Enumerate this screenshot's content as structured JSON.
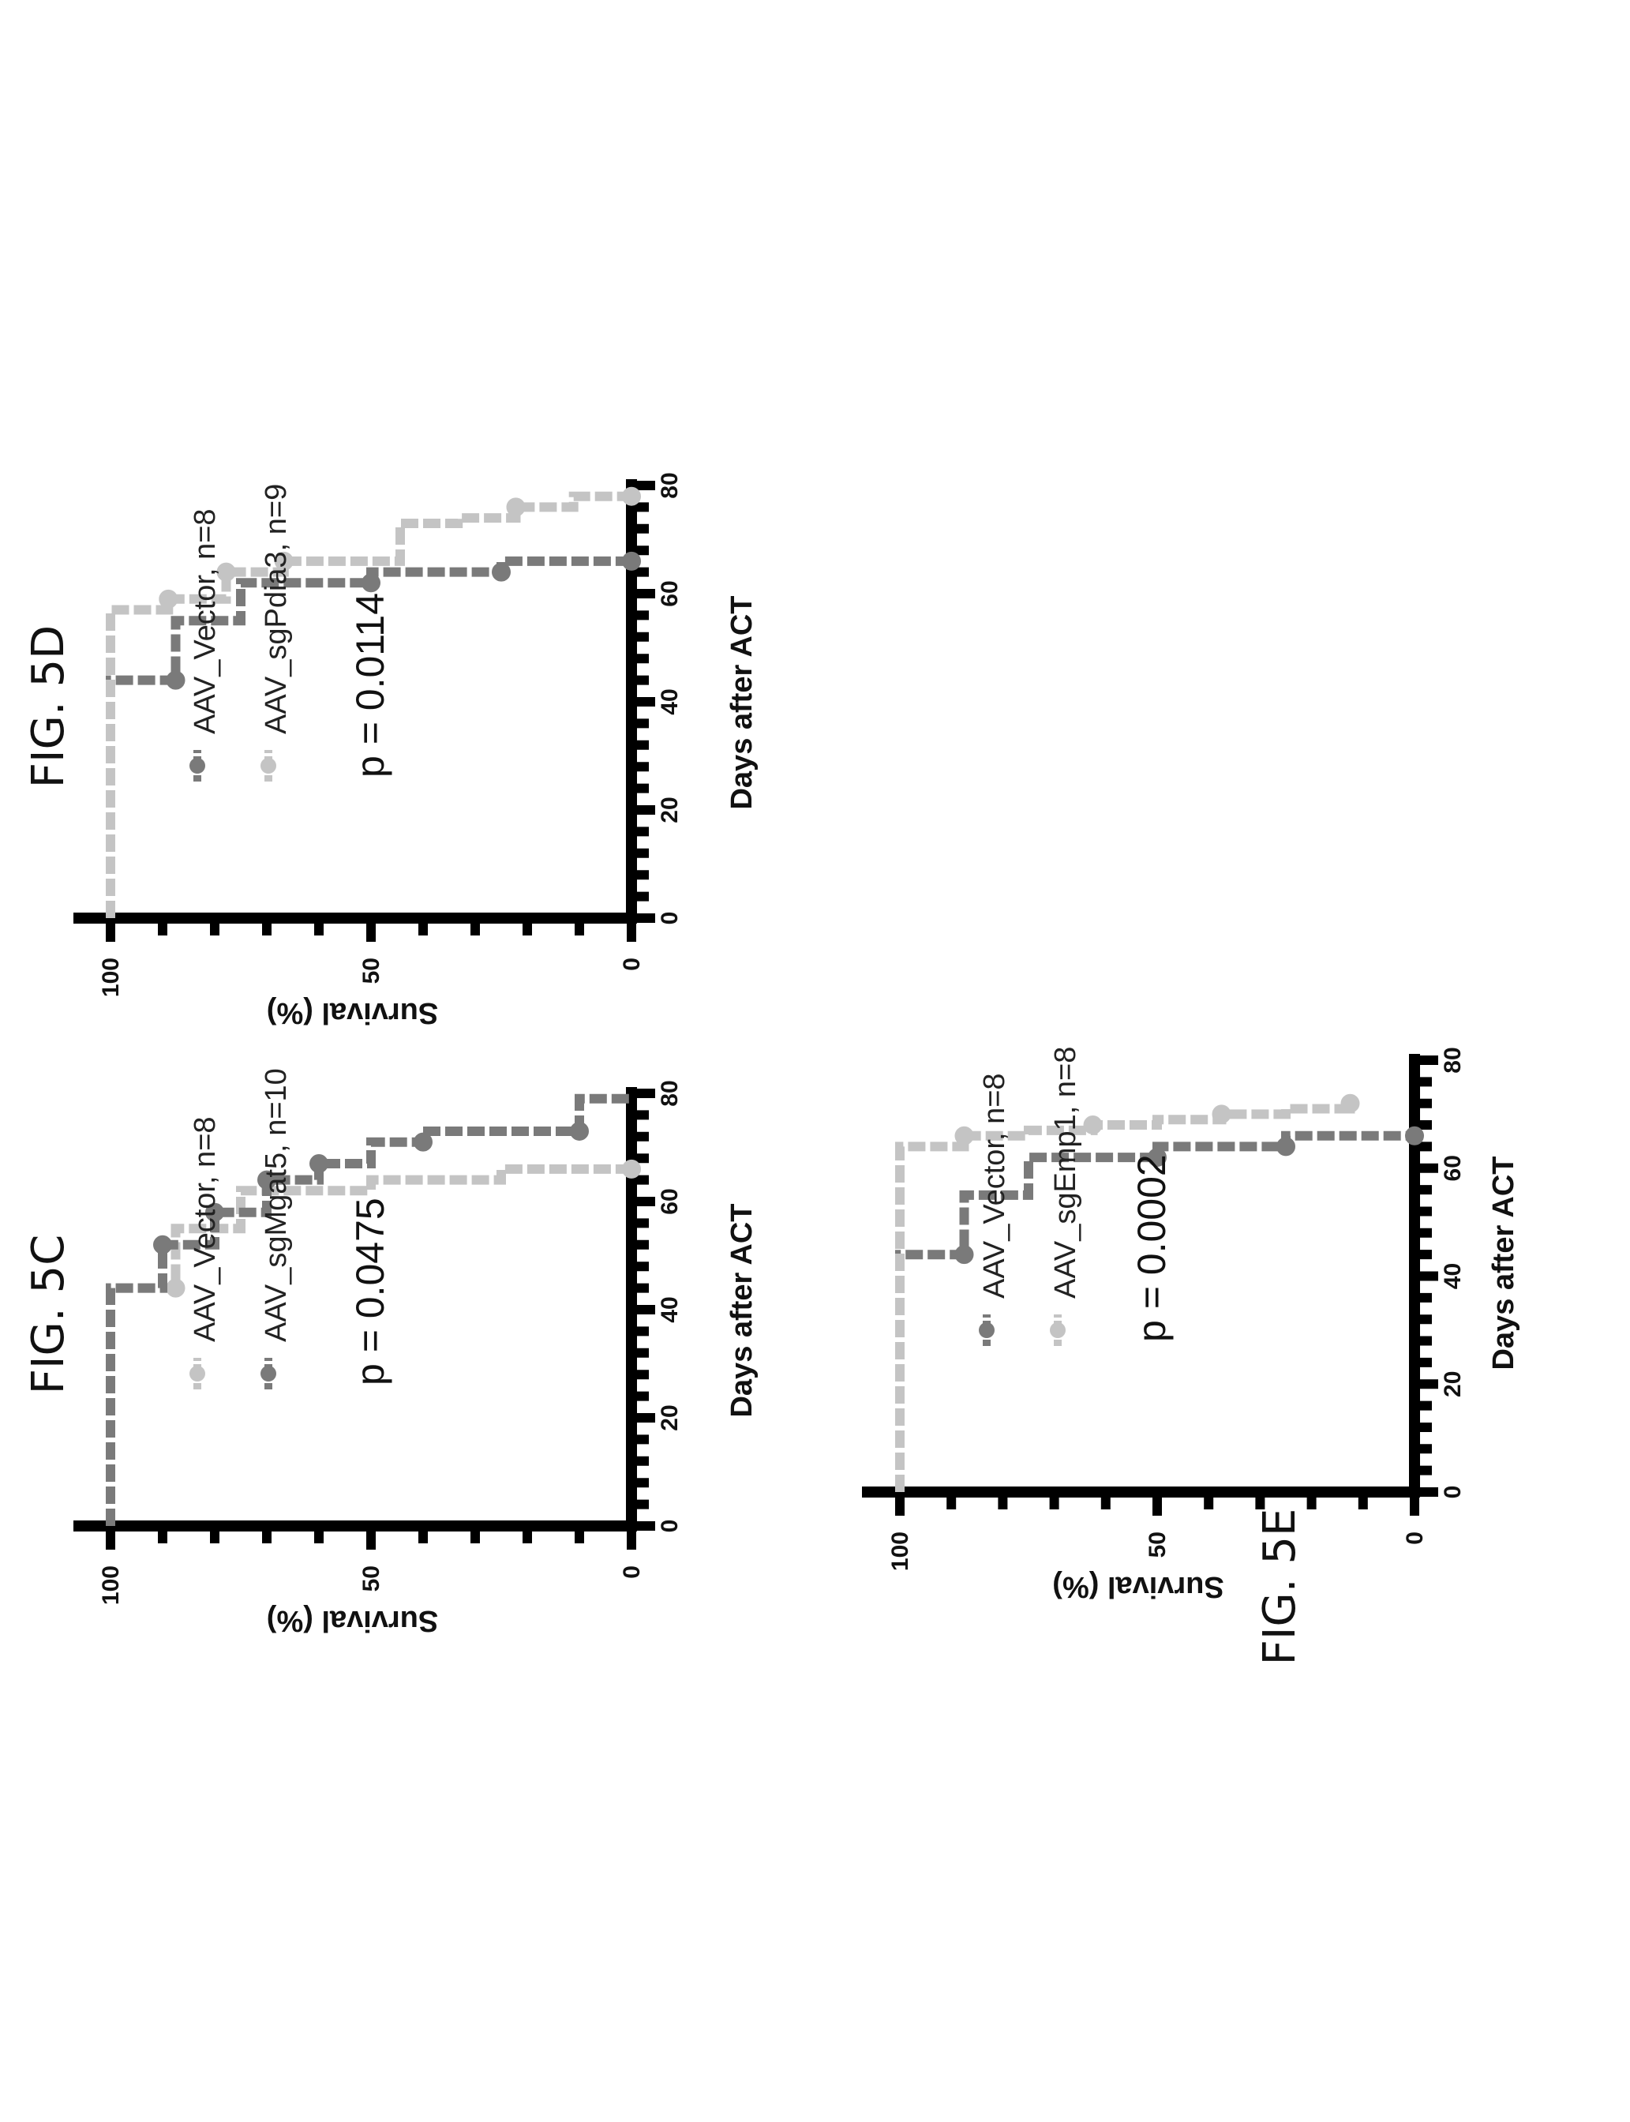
{
  "colors": {
    "axis": "#000000",
    "dark_series": "#7a7a7a",
    "light_series": "#c4c4c4"
  },
  "chart_data": [
    {
      "type": "line",
      "title": "FIG. 5C",
      "xlabel": "Days after ACT",
      "ylabel": "Survival (%)",
      "xlim": [
        0,
        80
      ],
      "ylim": [
        0,
        100
      ],
      "xticks": [
        0,
        20,
        40,
        60,
        80
      ],
      "yticks": [
        0,
        50,
        100
      ],
      "p_value": "p = 0.0475",
      "series": [
        {
          "name": "AAV_Vector, n=8",
          "shade": "light",
          "x": [
            0,
            44,
            44,
            55,
            55,
            62,
            62,
            64,
            64,
            66,
            66
          ],
          "y": [
            100,
            100,
            87.5,
            87.5,
            75,
            75,
            50,
            50,
            25,
            25,
            0
          ],
          "censored": [
            [
              44,
              87.5
            ],
            [
              66,
              0
            ]
          ]
        },
        {
          "name": "AAV_sgMgat5, n=10",
          "shade": "dark",
          "x": [
            0,
            44,
            44,
            52,
            52,
            58,
            58,
            64,
            64,
            67,
            67,
            71,
            71,
            73,
            73,
            79,
            79
          ],
          "y": [
            100,
            100,
            90,
            90,
            80,
            80,
            70,
            70,
            60,
            60,
            50,
            50,
            40,
            40,
            10,
            10,
            0
          ],
          "censored": [
            [
              52,
              90
            ],
            [
              58,
              80
            ],
            [
              64,
              70
            ],
            [
              67,
              60
            ],
            [
              71,
              40
            ],
            [
              73,
              10
            ]
          ]
        }
      ]
    },
    {
      "type": "line",
      "title": "FIG. 5D",
      "xlabel": "Days after ACT",
      "ylabel": "Survival (%)",
      "xlim": [
        0,
        80
      ],
      "ylim": [
        0,
        100
      ],
      "xticks": [
        0,
        20,
        40,
        60,
        80
      ],
      "yticks": [
        0,
        50,
        100
      ],
      "p_value": "p = 0.0114",
      "series": [
        {
          "name": "AAV_Vector, n=8",
          "shade": "dark",
          "x": [
            0,
            44,
            44,
            55,
            55,
            62,
            62,
            64,
            64,
            66,
            66
          ],
          "y": [
            100,
            100,
            87.5,
            87.5,
            75,
            75,
            50,
            50,
            25,
            25,
            0
          ],
          "censored": [
            [
              44,
              87.5
            ],
            [
              62,
              50
            ],
            [
              64,
              25
            ],
            [
              66,
              0
            ]
          ]
        },
        {
          "name": "AAV_sgPdia3, n=9",
          "shade": "light",
          "x": [
            0,
            57,
            57,
            59,
            59,
            64,
            64,
            66,
            66,
            73,
            73,
            74,
            74,
            76,
            76,
            78,
            78
          ],
          "y": [
            100,
            100,
            88.9,
            88.9,
            77.8,
            77.8,
            66.7,
            66.7,
            44.4,
            44.4,
            33.3,
            33.3,
            22.2,
            22.2,
            11.1,
            11.1,
            0
          ],
          "censored": [
            [
              59,
              88.9
            ],
            [
              64,
              77.8
            ],
            [
              66,
              66.7
            ],
            [
              76,
              22.2
            ],
            [
              78,
              0
            ]
          ]
        }
      ]
    },
    {
      "type": "line",
      "title": "FIG. 5E",
      "xlabel": "Days after ACT",
      "ylabel": "Survival (%)",
      "xlim": [
        0,
        80
      ],
      "ylim": [
        0,
        100
      ],
      "xticks": [
        0,
        20,
        40,
        60,
        80
      ],
      "yticks": [
        0,
        50,
        100
      ],
      "p_value": "p = 0.0002",
      "series": [
        {
          "name": "AAV_Vector, n=8",
          "shade": "dark",
          "x": [
            0,
            44,
            44,
            55,
            55,
            62,
            62,
            64,
            64,
            66,
            66
          ],
          "y": [
            100,
            100,
            87.5,
            87.5,
            75,
            75,
            50,
            50,
            25,
            25,
            0
          ],
          "censored": [
            [
              44,
              87.5
            ],
            [
              62,
              50
            ],
            [
              64,
              25
            ],
            [
              66,
              0
            ]
          ]
        },
        {
          "name": "AAV_sgEmp1, n=8",
          "shade": "light",
          "x": [
            0,
            64,
            64,
            66,
            66,
            67,
            67,
            68,
            68,
            69,
            69,
            70,
            70,
            71,
            71,
            72
          ],
          "y": [
            100,
            100,
            87.5,
            87.5,
            75,
            75,
            62.5,
            62.5,
            50,
            50,
            37.5,
            37.5,
            25,
            25,
            12.5,
            12.5
          ],
          "censored": [
            [
              66,
              87.5
            ],
            [
              68,
              62.5
            ],
            [
              70,
              37.5
            ],
            [
              72,
              12.5
            ]
          ]
        }
      ]
    }
  ]
}
